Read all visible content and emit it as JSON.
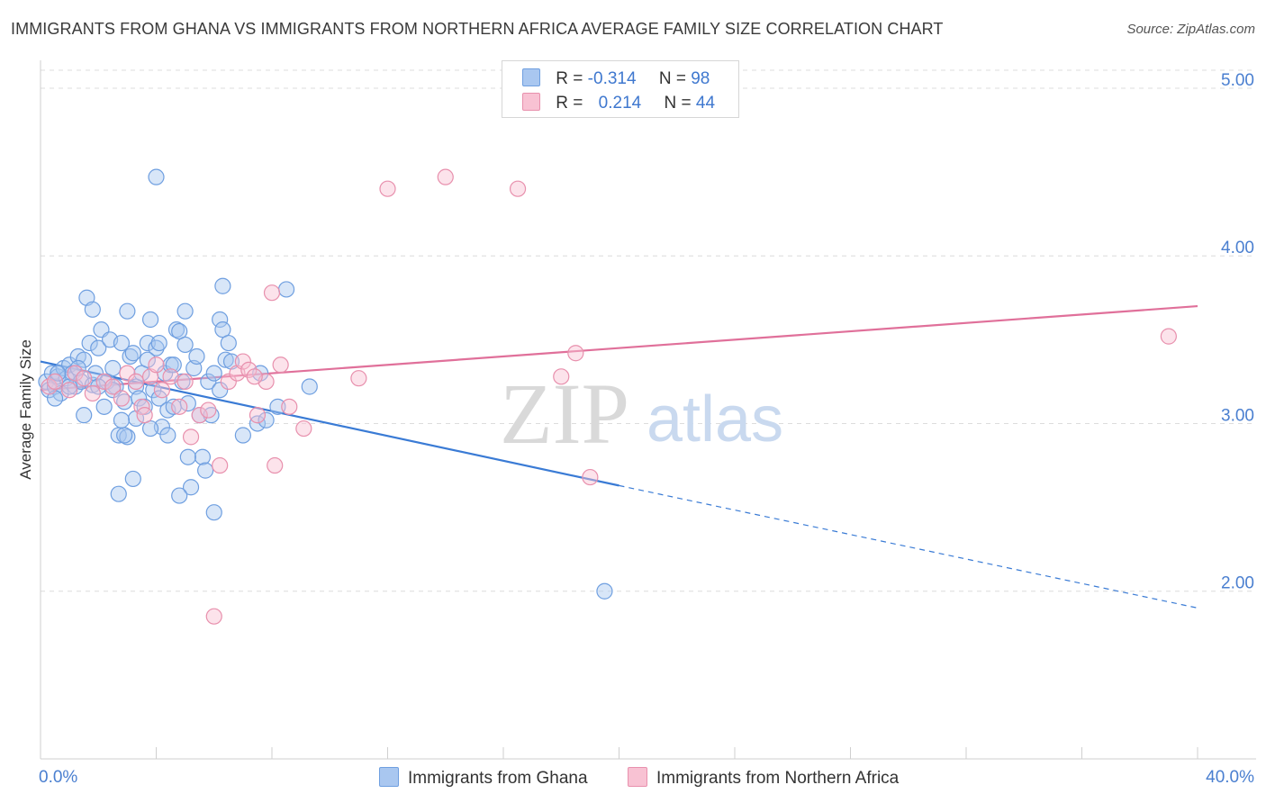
{
  "title": "IMMIGRANTS FROM GHANA VS IMMIGRANTS FROM NORTHERN AFRICA AVERAGE FAMILY SIZE CORRELATION CHART",
  "source": "Source: ZipAtlas.com",
  "watermark": {
    "zip": "ZIP",
    "atlas": "atlas"
  },
  "legend": {
    "r_label": "R =",
    "n_label": "N =",
    "rows": [
      {
        "r": "-0.314",
        "n": "98",
        "color": "#a9c7f0",
        "border": "#6f9fe0"
      },
      {
        "r": "0.214",
        "n": "44",
        "color": "#f8c2d3",
        "border": "#e890ad"
      }
    ]
  },
  "bottom_legend": {
    "ghana": "Immigrants from Ghana",
    "nafrica": "Immigrants from Northern Africa"
  },
  "chart_data": {
    "type": "scatter",
    "title": "IMMIGRANTS FROM GHANA VS IMMIGRANTS FROM NORTHERN AFRICA AVERAGE FAMILY SIZE CORRELATION CHART",
    "xlabel": "",
    "ylabel": "Average Family Size",
    "xlim": [
      0,
      40
    ],
    "ylim": [
      1.0,
      5.15
    ],
    "x_tick_labels": [
      "0.0%",
      "40.0%"
    ],
    "y_ticks": [
      2.0,
      3.0,
      4.0,
      5.0
    ],
    "y_tick_labels": [
      "2.00",
      "3.00",
      "4.00",
      "5.00"
    ],
    "grid": true,
    "series": [
      {
        "name": "Immigrants from Ghana",
        "color": "#6f9fe0",
        "fill": "#a9c7f0",
        "trend": {
          "x0": 0,
          "y0": 3.37,
          "x1": 20,
          "y1": 2.63,
          "dash_to_x": 40,
          "dash_to_y": 1.9
        },
        "points": [
          [
            0.2,
            3.25
          ],
          [
            0.3,
            3.2
          ],
          [
            0.4,
            3.3
          ],
          [
            0.5,
            3.22
          ],
          [
            0.6,
            3.28
          ],
          [
            0.7,
            3.18
          ],
          [
            0.8,
            3.33
          ],
          [
            0.9,
            3.27
          ],
          [
            1.0,
            3.35
          ],
          [
            1.1,
            3.3
          ],
          [
            1.2,
            3.22
          ],
          [
            1.3,
            3.4
          ],
          [
            1.4,
            3.25
          ],
          [
            1.5,
            3.05
          ],
          [
            1.6,
            3.75
          ],
          [
            1.7,
            3.48
          ],
          [
            1.8,
            3.23
          ],
          [
            1.9,
            3.3
          ],
          [
            2.0,
            3.45
          ],
          [
            2.1,
            3.56
          ],
          [
            2.2,
            3.1
          ],
          [
            2.3,
            3.25
          ],
          [
            2.4,
            3.5
          ],
          [
            2.5,
            3.33
          ],
          [
            2.6,
            3.22
          ],
          [
            2.7,
            2.93
          ],
          [
            2.8,
            3.48
          ],
          [
            2.9,
            3.13
          ],
          [
            3.0,
            3.67
          ],
          [
            3.1,
            3.4
          ],
          [
            3.2,
            3.42
          ],
          [
            3.3,
            3.22
          ],
          [
            3.4,
            3.15
          ],
          [
            3.5,
            3.3
          ],
          [
            3.6,
            3.1
          ],
          [
            3.7,
            3.48
          ],
          [
            3.8,
            3.62
          ],
          [
            3.9,
            3.2
          ],
          [
            4.0,
            3.45
          ],
          [
            4.1,
            3.15
          ],
          [
            4.2,
            2.98
          ],
          [
            4.3,
            3.3
          ],
          [
            4.4,
            3.08
          ],
          [
            4.5,
            3.35
          ],
          [
            4.6,
            3.1
          ],
          [
            4.7,
            3.56
          ],
          [
            4.8,
            3.55
          ],
          [
            4.9,
            3.25
          ],
          [
            5.0,
            3.47
          ],
          [
            5.1,
            3.12
          ],
          [
            5.2,
            2.62
          ],
          [
            5.3,
            3.33
          ],
          [
            5.4,
            3.4
          ],
          [
            5.5,
            3.05
          ],
          [
            5.6,
            2.8
          ],
          [
            5.7,
            2.72
          ],
          [
            5.8,
            3.25
          ],
          [
            5.9,
            3.05
          ],
          [
            6.0,
            3.3
          ],
          [
            6.2,
            3.62
          ],
          [
            6.4,
            3.38
          ],
          [
            6.6,
            3.37
          ],
          [
            4.0,
            4.47
          ],
          [
            5.0,
            3.67
          ],
          [
            6.3,
            3.56
          ],
          [
            6.5,
            3.48
          ],
          [
            4.1,
            3.48
          ],
          [
            3.7,
            3.38
          ],
          [
            3.2,
            2.67
          ],
          [
            3.0,
            2.92
          ],
          [
            2.7,
            2.58
          ],
          [
            4.8,
            2.57
          ],
          [
            0.5,
            3.15
          ],
          [
            1.0,
            3.22
          ],
          [
            1.5,
            3.38
          ],
          [
            2.5,
            3.2
          ],
          [
            2.9,
            2.93
          ],
          [
            3.3,
            3.03
          ],
          [
            3.8,
            2.97
          ],
          [
            4.4,
            2.93
          ],
          [
            5.1,
            2.8
          ],
          [
            6.0,
            2.47
          ],
          [
            6.2,
            3.2
          ],
          [
            6.3,
            3.82
          ],
          [
            7.0,
            2.93
          ],
          [
            7.5,
            3.0
          ],
          [
            7.6,
            3.3
          ],
          [
            7.8,
            3.02
          ],
          [
            8.5,
            3.8
          ],
          [
            8.2,
            3.1
          ],
          [
            9.3,
            3.22
          ],
          [
            19.5,
            2.0
          ],
          [
            1.8,
            3.68
          ],
          [
            2.8,
            3.02
          ],
          [
            4.6,
            3.35
          ],
          [
            0.6,
            3.3
          ],
          [
            1.3,
            3.33
          ],
          [
            2.0,
            3.22
          ]
        ]
      },
      {
        "name": "Immigrants from Northern Africa",
        "color": "#e890ad",
        "fill": "#f8c2d3",
        "trend": {
          "x0": 0,
          "y0": 3.2,
          "x1": 40,
          "y1": 3.7
        },
        "points": [
          [
            0.3,
            3.22
          ],
          [
            0.5,
            3.25
          ],
          [
            1.0,
            3.2
          ],
          [
            1.2,
            3.3
          ],
          [
            1.5,
            3.27
          ],
          [
            1.8,
            3.18
          ],
          [
            2.2,
            3.25
          ],
          [
            2.5,
            3.22
          ],
          [
            2.8,
            3.15
          ],
          [
            3.0,
            3.3
          ],
          [
            3.3,
            3.25
          ],
          [
            3.5,
            3.1
          ],
          [
            3.8,
            3.28
          ],
          [
            4.0,
            3.35
          ],
          [
            4.2,
            3.2
          ],
          [
            4.5,
            3.28
          ],
          [
            4.8,
            3.1
          ],
          [
            5.0,
            3.25
          ],
          [
            5.2,
            2.92
          ],
          [
            5.5,
            3.05
          ],
          [
            5.8,
            3.08
          ],
          [
            6.2,
            2.75
          ],
          [
            6.5,
            3.25
          ],
          [
            6.8,
            3.3
          ],
          [
            7.0,
            3.37
          ],
          [
            7.2,
            3.32
          ],
          [
            7.5,
            3.05
          ],
          [
            7.8,
            3.25
          ],
          [
            8.1,
            2.75
          ],
          [
            8.3,
            3.35
          ],
          [
            8.6,
            3.1
          ],
          [
            9.1,
            2.97
          ],
          [
            11.0,
            3.27
          ],
          [
            12.0,
            4.4
          ],
          [
            14.0,
            4.47
          ],
          [
            18.0,
            3.28
          ],
          [
            16.5,
            4.4
          ],
          [
            18.5,
            3.42
          ],
          [
            19.0,
            2.68
          ],
          [
            39.0,
            3.52
          ],
          [
            7.4,
            3.28
          ],
          [
            8.0,
            3.78
          ],
          [
            6.0,
            1.85
          ],
          [
            3.6,
            3.05
          ]
        ]
      }
    ]
  }
}
